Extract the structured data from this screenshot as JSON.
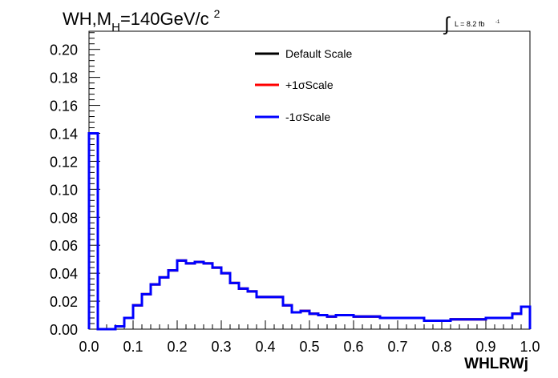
{
  "title": {
    "main": "WH,M",
    "sub": "H",
    "rest": "=140GeV/c",
    "sup": "2"
  },
  "lumi": {
    "integral_symbol": "∫",
    "text": "L = 8.2 fb",
    "sup": "-1"
  },
  "chart_data": {
    "type": "line",
    "style": "step-histogram",
    "xlabel": "WHLRWj",
    "ylabel": "",
    "xlim": [
      0.0,
      1.0
    ],
    "ylim": [
      0.0,
      0.213
    ],
    "x_ticks": [
      "0.0",
      "0.1",
      "0.2",
      "0.3",
      "0.4",
      "0.5",
      "0.6",
      "0.7",
      "0.8",
      "0.9",
      "1.0"
    ],
    "y_ticks": [
      "0.00",
      "0.02",
      "0.04",
      "0.06",
      "0.08",
      "0.10",
      "0.12",
      "0.14",
      "0.16",
      "0.18",
      "0.20"
    ],
    "bin_edges": [
      0.0,
      0.02,
      0.04,
      0.06,
      0.08,
      0.1,
      0.12,
      0.14,
      0.16,
      0.18,
      0.2,
      0.22,
      0.24,
      0.26,
      0.28,
      0.3,
      0.32,
      0.34,
      0.36,
      0.38,
      0.4,
      0.42,
      0.44,
      0.46,
      0.48,
      0.5,
      0.52,
      0.54,
      0.56,
      0.58,
      0.6,
      0.62,
      0.64,
      0.66,
      0.68,
      0.7,
      0.72,
      0.74,
      0.76,
      0.78,
      0.8,
      0.82,
      0.84,
      0.86,
      0.88,
      0.9,
      0.92,
      0.94,
      0.96,
      0.98,
      1.0
    ],
    "series": [
      {
        "name": "Default Scale",
        "color": "#000000",
        "values": [
          0.14,
          0.0,
          0.0,
          0.002,
          0.008,
          0.017,
          0.025,
          0.032,
          0.037,
          0.042,
          0.049,
          0.047,
          0.048,
          0.047,
          0.044,
          0.04,
          0.033,
          0.029,
          0.027,
          0.023,
          0.023,
          0.023,
          0.017,
          0.012,
          0.013,
          0.011,
          0.01,
          0.009,
          0.01,
          0.01,
          0.009,
          0.009,
          0.009,
          0.008,
          0.008,
          0.008,
          0.008,
          0.008,
          0.006,
          0.006,
          0.006,
          0.007,
          0.007,
          0.007,
          0.007,
          0.008,
          0.008,
          0.008,
          0.011,
          0.016
        ]
      },
      {
        "name": "+1σScale",
        "color": "#ff0000",
        "values": [
          0.14,
          0.0,
          0.0,
          0.002,
          0.008,
          0.017,
          0.025,
          0.032,
          0.037,
          0.042,
          0.049,
          0.047,
          0.048,
          0.047,
          0.044,
          0.04,
          0.033,
          0.029,
          0.027,
          0.023,
          0.023,
          0.023,
          0.017,
          0.012,
          0.013,
          0.011,
          0.01,
          0.009,
          0.01,
          0.01,
          0.009,
          0.009,
          0.009,
          0.008,
          0.008,
          0.008,
          0.008,
          0.008,
          0.006,
          0.006,
          0.006,
          0.007,
          0.007,
          0.007,
          0.007,
          0.008,
          0.008,
          0.008,
          0.011,
          0.016
        ]
      },
      {
        "name": "-1σScale",
        "color": "#0000ff",
        "values": [
          0.14,
          0.0,
          0.0,
          0.002,
          0.008,
          0.017,
          0.025,
          0.032,
          0.037,
          0.042,
          0.049,
          0.047,
          0.048,
          0.047,
          0.044,
          0.04,
          0.033,
          0.029,
          0.027,
          0.023,
          0.023,
          0.023,
          0.017,
          0.012,
          0.013,
          0.011,
          0.01,
          0.009,
          0.01,
          0.01,
          0.009,
          0.009,
          0.009,
          0.008,
          0.008,
          0.008,
          0.008,
          0.008,
          0.006,
          0.006,
          0.006,
          0.007,
          0.007,
          0.007,
          0.007,
          0.008,
          0.008,
          0.008,
          0.011,
          0.016
        ]
      }
    ],
    "legend": {
      "placement": "top-center",
      "entries": [
        "Default Scale",
        "+1σScale",
        "-1σScale"
      ]
    },
    "grid": false
  }
}
